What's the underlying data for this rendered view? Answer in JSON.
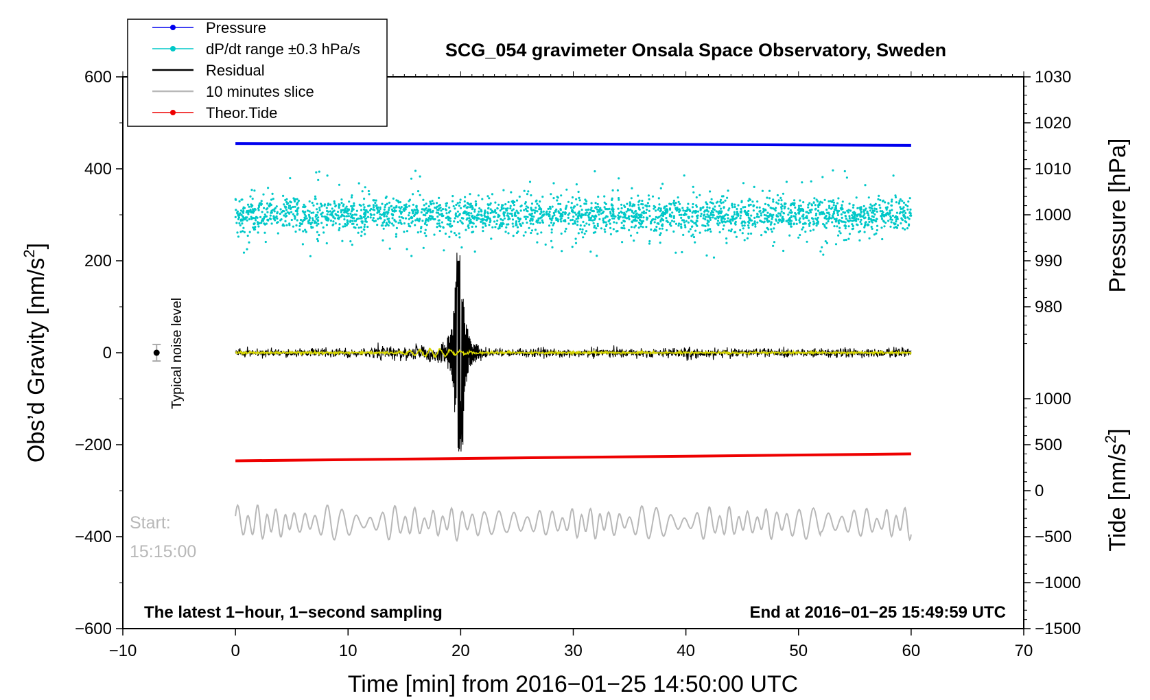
{
  "chart_data": {
    "type": "line",
    "title": "SCG_054 gravimeter Onsala Space Observatory, Sweden",
    "xlabel": "Time [min] from 2016−01−25 14:50:00 UTC",
    "ylabel_left": "Obs’d Gravity [nm/s²]",
    "ylabel_left_plain": "Obs’d Gravity [nm/s",
    "ylabel_left_sup": "2",
    "ylabel_left_close": "]",
    "ylabel_right_top": "Pressure [hPa]",
    "ylabel_right_bottom_plain": "Tide [nm/s",
    "ylabel_right_bottom_sup": "2",
    "ylabel_right_bottom_close": "]",
    "xlim": [
      -10,
      70
    ],
    "ylim_left": [
      -600,
      600
    ],
    "ylim_pressure": [
      970,
      1030
    ],
    "ylim_tide": [
      -1500,
      1500
    ],
    "grid": false,
    "legend_position": "top-left",
    "x_ticks": [
      -10,
      0,
      10,
      20,
      30,
      40,
      50,
      60,
      70
    ],
    "x_tick_labels": [
      "−10",
      "0",
      "10",
      "20",
      "30",
      "40",
      "50",
      "60",
      "70"
    ],
    "y_left_ticks": [
      -600,
      -400,
      -200,
      0,
      200,
      400,
      600
    ],
    "y_left_tick_labels": [
      "−600",
      "−400",
      "−200",
      "0",
      "200",
      "400",
      "600"
    ],
    "pressure_ticks": [
      980,
      990,
      1000,
      1010,
      1020,
      1030
    ],
    "pressure_tick_labels": [
      "980",
      "990",
      "1000",
      "1010",
      "1020",
      "1030"
    ],
    "tide_ticks": [
      -1500,
      -1000,
      -500,
      0,
      500,
      1000
    ],
    "tide_tick_labels": [
      "−1500",
      "−1000",
      "−500",
      "0",
      "500",
      "1000"
    ],
    "series": [
      {
        "name": "Pressure",
        "color": "#0000ee",
        "axis": "pressure",
        "x": [
          0,
          30,
          60
        ],
        "y": [
          1015.5,
          1015.4,
          1015.1
        ]
      },
      {
        "name": "dP/dt range ±0.3 hPa/s",
        "color": "#00c8c8",
        "axis": "left",
        "center": 300,
        "spread": 100,
        "x_range": [
          0,
          60
        ]
      },
      {
        "name": "Residual",
        "color": "#000000",
        "axis": "left",
        "x_range": [
          0,
          60
        ],
        "peak_x": 19.9,
        "peak_max": 218,
        "peak_min": -215
      },
      {
        "name": "10 minutes slice",
        "color": "#b8b8b8",
        "axis": "left",
        "center": -370,
        "amplitude": 40,
        "x_range": [
          0,
          60
        ]
      },
      {
        "name": "Theor.Tide",
        "color": "#ee0000",
        "axis": "left",
        "x": [
          0,
          60
        ],
        "y": [
          -235,
          -220
        ]
      }
    ],
    "noise_level": {
      "x": -7,
      "y": 0,
      "error": 18,
      "label": "Typical noise level"
    },
    "annotations": {
      "start_label": "Start:",
      "start_time": "15:15:00",
      "bottom_left": "The latest 1−hour, 1−second sampling",
      "bottom_right": "End at 2016−01−25 15:49:59 UTC"
    },
    "colors": {
      "residual_fit": "#d8d800"
    }
  }
}
